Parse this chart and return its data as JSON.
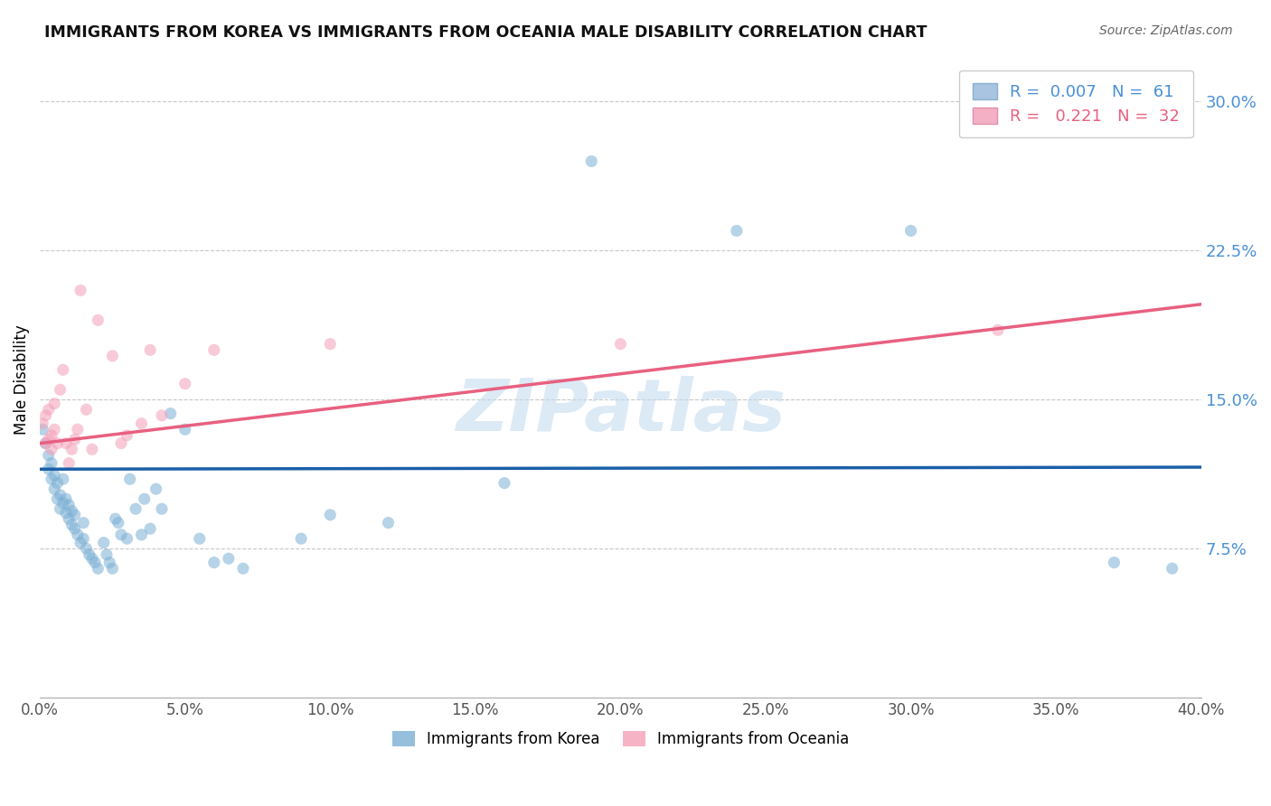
{
  "title": "IMMIGRANTS FROM KOREA VS IMMIGRANTS FROM OCEANIA MALE DISABILITY CORRELATION CHART",
  "source": "Source: ZipAtlas.com",
  "ylabel": "Male Disability",
  "right_yticks": [
    "7.5%",
    "15.0%",
    "22.5%",
    "30.0%"
  ],
  "right_ytick_vals": [
    0.075,
    0.15,
    0.225,
    0.3
  ],
  "xlim": [
    0.0,
    0.4
  ],
  "ylim": [
    0.0,
    0.32
  ],
  "legend1_label": "R =  0.007   N =  61",
  "legend2_label": "R =   0.221   N =  32",
  "legend1_color": "#a8c4e0",
  "legend2_color": "#f4b0c4",
  "blue_scatter_x": [
    0.001,
    0.002,
    0.003,
    0.003,
    0.004,
    0.004,
    0.005,
    0.005,
    0.006,
    0.006,
    0.007,
    0.007,
    0.008,
    0.008,
    0.009,
    0.009,
    0.01,
    0.01,
    0.011,
    0.011,
    0.012,
    0.012,
    0.013,
    0.014,
    0.015,
    0.015,
    0.016,
    0.017,
    0.018,
    0.019,
    0.02,
    0.022,
    0.023,
    0.024,
    0.025,
    0.026,
    0.027,
    0.028,
    0.03,
    0.031,
    0.033,
    0.035,
    0.036,
    0.038,
    0.04,
    0.042,
    0.045,
    0.05,
    0.055,
    0.06,
    0.065,
    0.07,
    0.09,
    0.1,
    0.12,
    0.16,
    0.19,
    0.24,
    0.3,
    0.37,
    0.39
  ],
  "blue_scatter_y": [
    0.135,
    0.128,
    0.122,
    0.115,
    0.118,
    0.11,
    0.112,
    0.105,
    0.108,
    0.1,
    0.102,
    0.095,
    0.098,
    0.11,
    0.093,
    0.1,
    0.09,
    0.097,
    0.087,
    0.094,
    0.085,
    0.092,
    0.082,
    0.078,
    0.08,
    0.088,
    0.075,
    0.072,
    0.07,
    0.068,
    0.065,
    0.078,
    0.072,
    0.068,
    0.065,
    0.09,
    0.088,
    0.082,
    0.08,
    0.11,
    0.095,
    0.082,
    0.1,
    0.085,
    0.105,
    0.095,
    0.143,
    0.135,
    0.08,
    0.068,
    0.07,
    0.065,
    0.08,
    0.092,
    0.088,
    0.108,
    0.27,
    0.235,
    0.235,
    0.068,
    0.065
  ],
  "pink_scatter_x": [
    0.001,
    0.002,
    0.002,
    0.003,
    0.003,
    0.004,
    0.004,
    0.005,
    0.005,
    0.006,
    0.007,
    0.008,
    0.009,
    0.01,
    0.011,
    0.012,
    0.013,
    0.014,
    0.016,
    0.018,
    0.02,
    0.025,
    0.028,
    0.03,
    0.035,
    0.038,
    0.042,
    0.05,
    0.06,
    0.1,
    0.2,
    0.33
  ],
  "pink_scatter_y": [
    0.138,
    0.128,
    0.142,
    0.13,
    0.145,
    0.132,
    0.125,
    0.135,
    0.148,
    0.128,
    0.155,
    0.165,
    0.128,
    0.118,
    0.125,
    0.13,
    0.135,
    0.205,
    0.145,
    0.125,
    0.19,
    0.172,
    0.128,
    0.132,
    0.138,
    0.175,
    0.142,
    0.158,
    0.175,
    0.178,
    0.178,
    0.185
  ],
  "blue_line_x": [
    0.0,
    0.4
  ],
  "blue_line_y": [
    0.115,
    0.116
  ],
  "pink_line_x": [
    0.0,
    0.4
  ],
  "pink_line_y": [
    0.128,
    0.198
  ],
  "blue_color": "#7bafd4",
  "pink_color": "#f4a0b8",
  "blue_line_color": "#1a5fa8",
  "pink_line_color": "#e86080",
  "watermark": "ZIPatlas",
  "grid_color": "#c8c8c8",
  "scatter_size": 90,
  "scatter_alpha": 0.55
}
